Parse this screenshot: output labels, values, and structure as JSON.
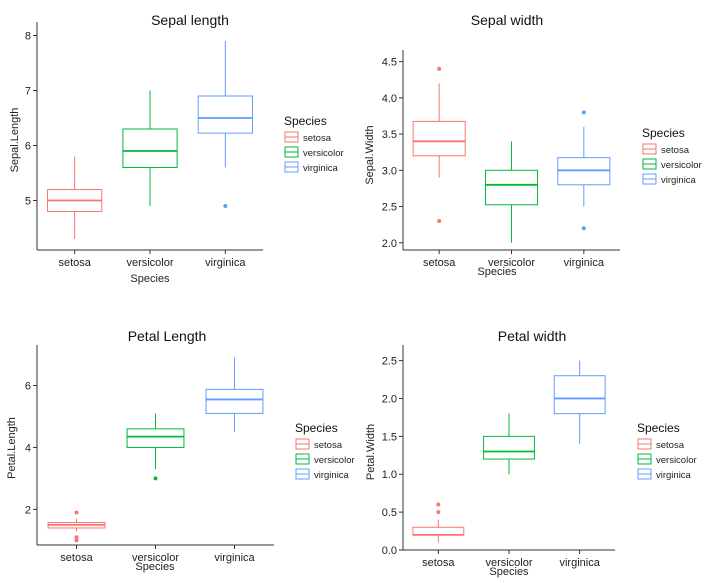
{
  "colors": {
    "setosa": "#F8766D",
    "versicolor": "#00BA38",
    "virginica": "#619CFF"
  },
  "chart_data": [
    {
      "type": "boxplot",
      "title": "Sepal length",
      "xlabel": "Species",
      "ylabel": "Sepal.Length",
      "categories": [
        "setosa",
        "versicolor",
        "virginica"
      ],
      "ylim": [
        4.1,
        8.1
      ],
      "yticks": [
        5,
        6,
        7,
        8
      ],
      "ytick_labels": [
        "5",
        "6",
        "7",
        "8"
      ],
      "boxes": [
        {
          "name": "setosa",
          "whisker_low": 4.3,
          "q1": 4.8,
          "median": 5.0,
          "q3": 5.2,
          "whisker_high": 5.8,
          "outliers": []
        },
        {
          "name": "versicolor",
          "whisker_low": 4.9,
          "q1": 5.6,
          "median": 5.9,
          "q3": 6.3,
          "whisker_high": 7.0,
          "outliers": []
        },
        {
          "name": "virginica",
          "whisker_low": 5.6,
          "q1": 6.225,
          "median": 6.5,
          "q3": 6.9,
          "whisker_high": 7.9,
          "outliers": [
            4.9
          ]
        }
      ],
      "legend": {
        "title": "Species",
        "items": [
          "setosa",
          "versicolor",
          "virginica"
        ],
        "position": "right"
      },
      "grid": false
    },
    {
      "type": "boxplot",
      "title": "Sepal width",
      "xlabel": "Species",
      "ylabel": "Sepal.Width",
      "categories": [
        "setosa",
        "versicolor",
        "virginica"
      ],
      "ylim": [
        1.9,
        4.55
      ],
      "yticks": [
        2.0,
        2.5,
        3.0,
        3.5,
        4.0,
        4.5
      ],
      "ytick_labels": [
        "2.0",
        "2.5",
        "3.0",
        "3.5",
        "4.0",
        "4.5"
      ],
      "boxes": [
        {
          "name": "setosa",
          "whisker_low": 2.9,
          "q1": 3.2,
          "median": 3.4,
          "q3": 3.675,
          "whisker_high": 4.2,
          "outliers": [
            2.3,
            4.4
          ]
        },
        {
          "name": "versicolor",
          "whisker_low": 2.0,
          "q1": 2.525,
          "median": 2.8,
          "q3": 3.0,
          "whisker_high": 3.4,
          "outliers": []
        },
        {
          "name": "virginica",
          "whisker_low": 2.5,
          "q1": 2.8,
          "median": 3.0,
          "q3": 3.175,
          "whisker_high": 3.6,
          "outliers": [
            2.2,
            3.8
          ]
        }
      ],
      "legend": {
        "title": "Species",
        "items": [
          "setosa",
          "versicolor",
          "virginica"
        ],
        "position": "right"
      },
      "grid": false
    },
    {
      "type": "boxplot",
      "title": "Petal Length",
      "xlabel": "Species",
      "ylabel": "Petal.Length",
      "categories": [
        "setosa",
        "versicolor",
        "virginica"
      ],
      "ylim": [
        0.85,
        7.05
      ],
      "yticks": [
        2,
        4,
        6
      ],
      "ytick_labels": [
        "2",
        "4",
        "6"
      ],
      "boxes": [
        {
          "name": "setosa",
          "whisker_low": 1.3,
          "q1": 1.4,
          "median": 1.5,
          "q3": 1.575,
          "whisker_high": 1.7,
          "outliers": [
            1.0,
            1.1,
            1.9
          ]
        },
        {
          "name": "versicolor",
          "whisker_low": 3.3,
          "q1": 4.0,
          "median": 4.35,
          "q3": 4.6,
          "whisker_high": 5.1,
          "outliers": [
            3.0
          ]
        },
        {
          "name": "virginica",
          "whisker_low": 4.5,
          "q1": 5.1,
          "median": 5.55,
          "q3": 5.875,
          "whisker_high": 6.9,
          "outliers": []
        }
      ],
      "legend": {
        "title": "Species",
        "items": [
          "setosa",
          "versicolor",
          "virginica"
        ],
        "position": "right"
      },
      "grid": false
    },
    {
      "type": "boxplot",
      "title": "Petal width",
      "xlabel": "Species",
      "ylabel": "Petal.Width",
      "categories": [
        "setosa",
        "versicolor",
        "virginica"
      ],
      "ylim": [
        0.0,
        2.6
      ],
      "yticks": [
        0.0,
        0.5,
        1.0,
        1.5,
        2.0,
        2.5
      ],
      "ytick_labels": [
        "0.0",
        "0.5",
        "1.0",
        "1.5",
        "2.0",
        "2.5"
      ],
      "boxes": [
        {
          "name": "setosa",
          "whisker_low": 0.1,
          "q1": 0.2,
          "median": 0.2,
          "q3": 0.3,
          "whisker_high": 0.4,
          "outliers": [
            0.5,
            0.6
          ]
        },
        {
          "name": "versicolor",
          "whisker_low": 1.0,
          "q1": 1.2,
          "median": 1.3,
          "q3": 1.5,
          "whisker_high": 1.8,
          "outliers": []
        },
        {
          "name": "virginica",
          "whisker_low": 1.4,
          "q1": 1.8,
          "median": 2.0,
          "q3": 2.3,
          "whisker_high": 2.5,
          "outliers": []
        }
      ],
      "legend": {
        "title": "Species",
        "items": [
          "setosa",
          "versicolor",
          "virginica"
        ],
        "position": "right"
      },
      "grid": false
    }
  ]
}
